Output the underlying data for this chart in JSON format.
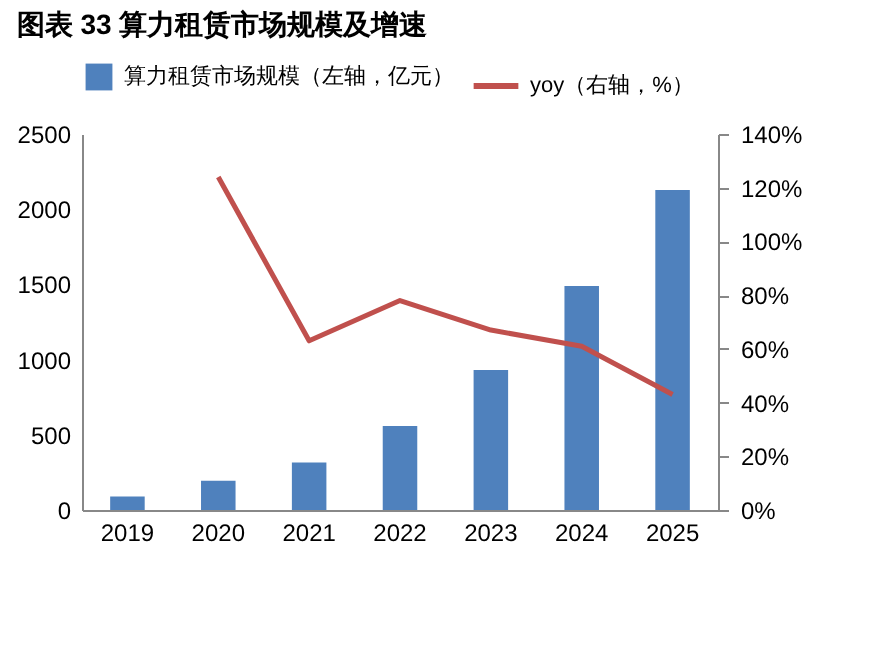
{
  "chart_data": {
    "type": "bar",
    "title": "图表 33 算力租赁市场规模及增速",
    "categories": [
      "2019",
      "2020",
      "2021",
      "2022",
      "2023",
      "2024",
      "2025"
    ],
    "series": [
      {
        "name": "算力租赁市场规模（左轴，亿元）",
        "color": "#4f81bd",
        "values": [
          89,
          195,
          315,
          559,
          931,
          1489,
          2128
        ]
      },
      {
        "name": "yoy（右轴，%）",
        "type": "line",
        "axis": "y2",
        "color": "#c0504d",
        "values": [
          null,
          124,
          63,
          78,
          67,
          61,
          43
        ]
      }
    ],
    "ylim": [
      0,
      2500
    ],
    "yticks": [
      0,
      500,
      1000,
      1500,
      2000,
      2500
    ],
    "y2lim": [
      0,
      140
    ],
    "y2ticks": [
      {
        "value": 0,
        "label": "0%"
      },
      {
        "value": 20,
        "label": "20%"
      },
      {
        "value": 40,
        "label": "40%"
      },
      {
        "value": 60,
        "label": "60%"
      },
      {
        "value": 80,
        "label": "80%"
      },
      {
        "value": 100,
        "label": "100%"
      },
      {
        "value": 120,
        "label": "120%"
      },
      {
        "value": 140,
        "label": "140%"
      }
    ],
    "grid": false,
    "legend": "top",
    "marker": "none",
    "line_style": "solid"
  }
}
